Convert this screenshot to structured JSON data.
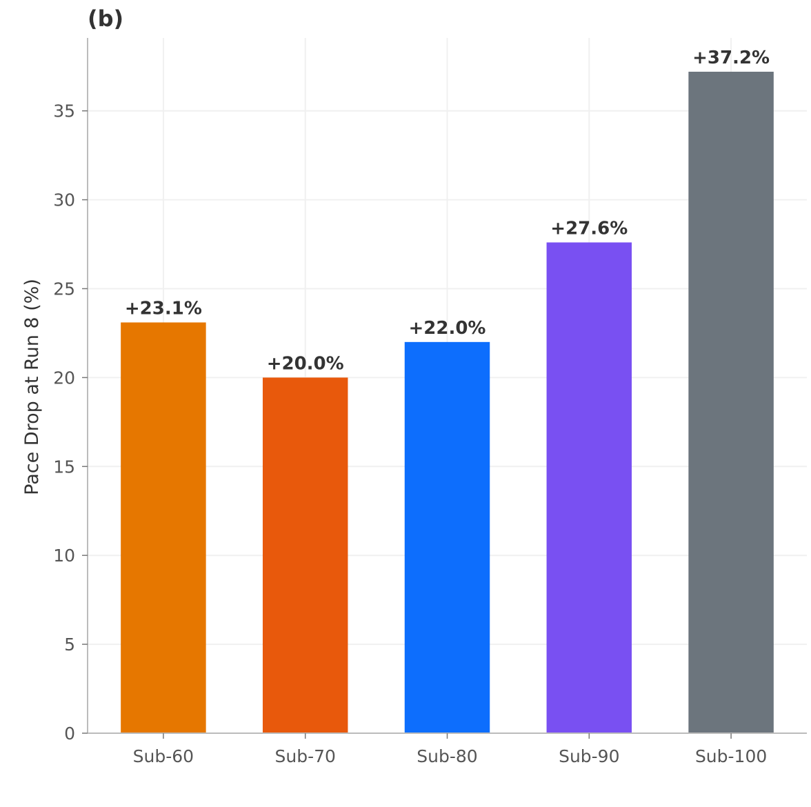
{
  "chart_data": {
    "type": "bar",
    "panel_label": "(b)",
    "title": "",
    "xlabel": "",
    "ylabel": "Pace Drop at Run 8 (%)",
    "categories": [
      "Sub-60",
      "Sub-70",
      "Sub-80",
      "Sub-90",
      "Sub-100"
    ],
    "values": [
      23.1,
      20.0,
      22.0,
      27.6,
      37.2
    ],
    "data_labels": [
      "+23.1%",
      "+20.0%",
      "+22.0%",
      "+27.6%",
      "+37.2%"
    ],
    "colors": [
      "#E67700",
      "#E8590C",
      "#0D6EFD",
      "#7950F2",
      "#6C757D"
    ],
    "yticks": [
      0,
      5,
      10,
      15,
      20,
      25,
      30,
      35
    ],
    "ylim": [
      0,
      39.1
    ],
    "grid": true
  }
}
